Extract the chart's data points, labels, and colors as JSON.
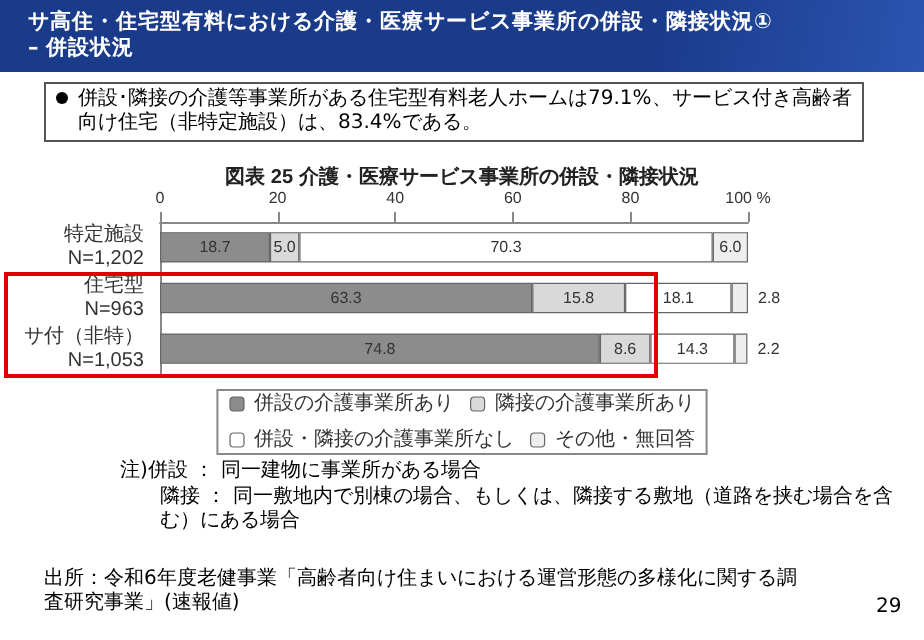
{
  "chart_data": {
    "type": "bar",
    "orientation": "horizontal",
    "stacked": true,
    "title": "サ高住・住宅型有料における介護・医療サービス事業所の併設・隣接状況①\n– 併設状況",
    "subtitle": "図表 25 介護・医療サービス事業所の併設・隣接状況",
    "categories": [
      "特定施設\nN=1,202",
      "住宅型\nN=963",
      "サ付（非特）\nN=1,053"
    ],
    "series": [
      {
        "name": "併設の介護事業所あり",
        "color": "#8c8c8c",
        "values": [
          18.7,
          63.3,
          74.8
        ],
        "value_labels": [
          "18.7",
          "63.3",
          "74.8"
        ]
      },
      {
        "name": "隣接の介護事業所あり",
        "color": "#d9d9d9",
        "values": [
          5.0,
          15.8,
          8.6
        ],
        "value_labels": [
          "5.0",
          "15.8",
          "8.6"
        ]
      },
      {
        "name": "併設・隣接の介護事業所なし",
        "color": "#ffffff",
        "values": [
          70.3,
          18.1,
          14.3
        ],
        "value_labels": [
          "70.3",
          "18.1",
          "14.3"
        ]
      },
      {
        "name": "その他・無回答",
        "color": "#eeeeee",
        "values": [
          6.0,
          2.8,
          2.2
        ],
        "value_labels": [
          "6.0",
          "2.8",
          "2.2"
        ]
      }
    ],
    "xlim": [
      0,
      100
    ],
    "xticks": [
      0,
      20,
      40,
      60,
      80,
      {
        "value": 100,
        "label": "100 %"
      }
    ],
    "grid": false,
    "legend": "bottom",
    "annotations": [
      "併設･隣接の介護等事業所がある住宅型有料老人ホームは79.1%、サービス付き高齢者向け住宅（非特定施設）は、83.4%である。",
      "注)併設 ： 同一建物に事業所がある場合",
      "隣接 ： 同一敷地内で別棟の場合、もしくは、隣接する敷地（道路を挟む場合を含む）にある場合",
      "出所：令和6年度老健事業「高齢者向け住まいにおける運営形態の多様化に関する調査研究事業」(速報値)",
      "29"
    ]
  }
}
